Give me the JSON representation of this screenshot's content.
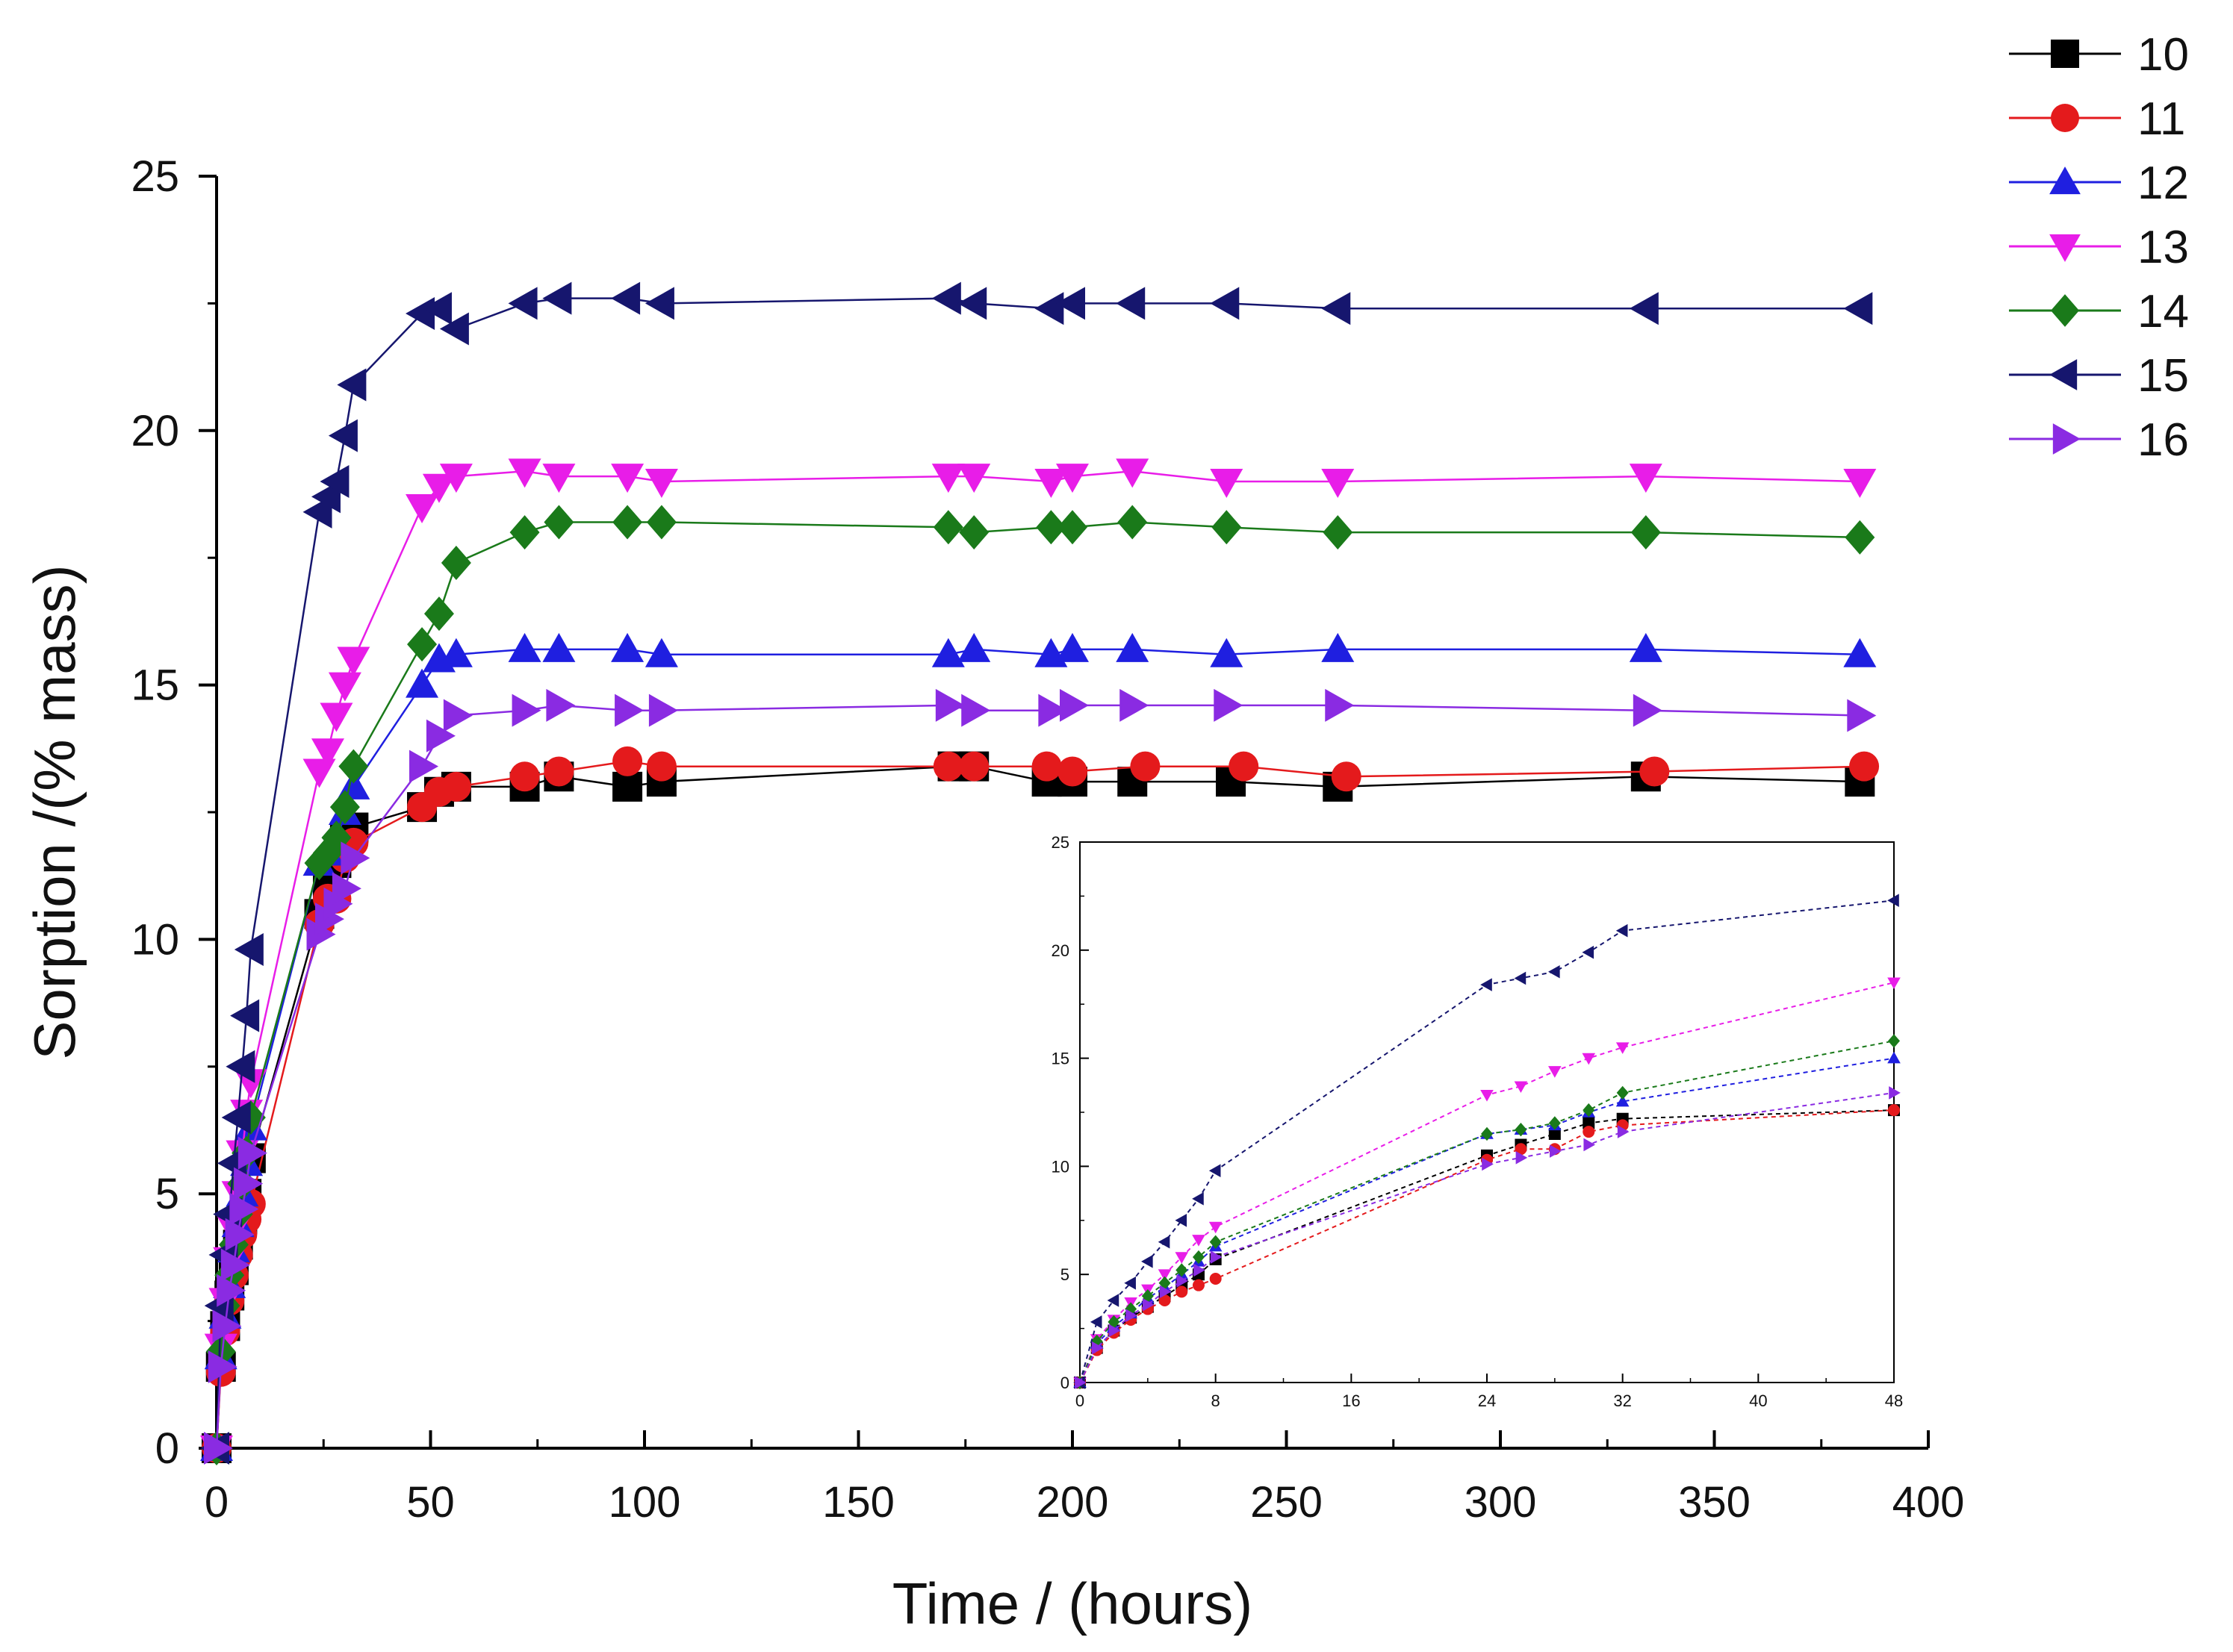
{
  "chart_data": {
    "type": "line",
    "title": "",
    "xlabel": "Time / (hours)",
    "ylabel": "Sorption /(% mass)",
    "xlim": [
      0,
      400
    ],
    "ylim": [
      0,
      25
    ],
    "xticks": [
      0,
      50,
      100,
      150,
      200,
      250,
      300,
      350,
      400
    ],
    "yticks": [
      0,
      5,
      10,
      15,
      20,
      25
    ],
    "x_tick_labels": [
      "0",
      "50",
      "100",
      "150",
      "200",
      "250",
      "300",
      "350",
      "400"
    ],
    "y_tick_labels": [
      "0",
      "5",
      "10",
      "15",
      "20",
      "25"
    ],
    "grid": false,
    "legend": "top-right",
    "series": [
      {
        "name": "10",
        "color": "#000000",
        "marker": "square",
        "x": [
          0,
          1,
          2,
          3,
          4,
          5,
          6,
          7,
          8,
          24,
          26,
          28,
          30,
          32,
          48,
          52,
          56,
          72,
          80,
          96,
          104,
          172,
          177,
          194,
          200,
          214,
          237,
          262,
          334,
          384
        ],
        "y": [
          0,
          1.6,
          2.4,
          3.0,
          3.5,
          4.0,
          4.5,
          5.0,
          5.7,
          10.5,
          11.0,
          11.5,
          12.0,
          12.2,
          12.6,
          12.9,
          13.0,
          13.0,
          13.2,
          13.0,
          13.1,
          13.4,
          13.4,
          13.1,
          13.1,
          13.1,
          13.1,
          13.0,
          13.2,
          13.1
        ]
      },
      {
        "name": "11",
        "color": "#e41a1c",
        "marker": "circle",
        "x": [
          0,
          1,
          2,
          3,
          4,
          5,
          6,
          7,
          8,
          24,
          26,
          28,
          30,
          32,
          48,
          52,
          56,
          72,
          80,
          96,
          104,
          171,
          177,
          194,
          200,
          217,
          240,
          264,
          336,
          385
        ],
        "y": [
          0,
          1.5,
          2.3,
          2.9,
          3.4,
          3.8,
          4.2,
          4.5,
          4.8,
          10.3,
          10.8,
          10.8,
          11.6,
          11.9,
          12.6,
          12.9,
          13.0,
          13.2,
          13.3,
          13.5,
          13.4,
          13.4,
          13.4,
          13.4,
          13.3,
          13.4,
          13.4,
          13.2,
          13.3,
          13.4
        ]
      },
      {
        "name": "12",
        "color": "#1f1fe0",
        "marker": "triangle-up",
        "x": [
          0,
          1,
          2,
          3,
          4,
          5,
          6,
          7,
          8,
          24,
          26,
          28,
          30,
          32,
          48,
          52,
          56,
          72,
          80,
          96,
          104,
          171,
          177,
          195,
          200,
          214,
          236,
          262,
          334,
          384
        ],
        "y": [
          0,
          1.8,
          2.6,
          3.2,
          3.9,
          4.4,
          5.0,
          5.6,
          6.3,
          11.5,
          11.7,
          11.9,
          12.5,
          13.0,
          15.0,
          15.5,
          15.6,
          15.7,
          15.7,
          15.7,
          15.6,
          15.6,
          15.7,
          15.6,
          15.7,
          15.7,
          15.6,
          15.7,
          15.7,
          15.6
        ]
      },
      {
        "name": "13",
        "color": "#e81de8",
        "marker": "triangle-down",
        "x": [
          0,
          1,
          2,
          3,
          4,
          5,
          6,
          7,
          8,
          24,
          26,
          28,
          30,
          32,
          48,
          52,
          56,
          72,
          80,
          96,
          104,
          171,
          177,
          195,
          200,
          214,
          236,
          262,
          334,
          384
        ],
        "y": [
          0,
          2.0,
          2.9,
          3.7,
          4.3,
          5.0,
          5.8,
          6.6,
          7.2,
          13.3,
          13.7,
          14.4,
          15.0,
          15.5,
          18.5,
          18.9,
          19.1,
          19.2,
          19.1,
          19.1,
          19.0,
          19.1,
          19.1,
          19.0,
          19.1,
          19.2,
          19.0,
          19.0,
          19.1,
          19.0
        ]
      },
      {
        "name": "14",
        "color": "#1a7a1a",
        "marker": "diamond",
        "x": [
          0,
          1,
          2,
          3,
          4,
          5,
          6,
          7,
          8,
          24,
          26,
          28,
          30,
          32,
          48,
          52,
          56,
          72,
          80,
          96,
          104,
          171,
          177,
          195,
          200,
          214,
          236,
          262,
          334,
          384
        ],
        "y": [
          0,
          1.9,
          2.8,
          3.4,
          4.0,
          4.6,
          5.2,
          5.8,
          6.5,
          11.5,
          11.7,
          12.0,
          12.6,
          13.4,
          15.8,
          16.4,
          17.4,
          18.0,
          18.2,
          18.2,
          18.2,
          18.1,
          18.0,
          18.1,
          18.1,
          18.2,
          18.1,
          18.0,
          18.0,
          17.9
        ]
      },
      {
        "name": "15",
        "color": "#16166e",
        "marker": "triangle-left",
        "x": [
          0,
          1,
          2,
          3,
          4,
          5,
          6,
          7,
          8,
          24,
          26,
          28,
          30,
          32,
          48,
          52,
          56,
          72,
          80,
          96,
          104,
          171,
          177,
          195,
          200,
          214,
          236,
          262,
          334,
          384
        ],
        "y": [
          0,
          2.8,
          3.8,
          4.6,
          5.6,
          6.5,
          7.5,
          8.5,
          9.8,
          18.4,
          18.7,
          19.0,
          19.9,
          20.9,
          22.3,
          22.4,
          22.0,
          22.5,
          22.6,
          22.6,
          22.5,
          22.6,
          22.5,
          22.4,
          22.5,
          22.5,
          22.5,
          22.4,
          22.4,
          22.4
        ]
      },
      {
        "name": "16",
        "color": "#8a2be2",
        "marker": "triangle-right",
        "x": [
          0,
          1,
          2,
          3,
          4,
          5,
          6,
          7,
          8,
          24,
          26,
          28,
          30,
          32,
          48,
          52,
          56,
          72,
          80,
          96,
          104,
          171,
          177,
          195,
          200,
          214,
          236,
          262,
          334,
          384
        ],
        "y": [
          0,
          1.6,
          2.4,
          3.1,
          3.6,
          4.2,
          4.7,
          5.2,
          5.8,
          10.1,
          10.4,
          10.7,
          11.0,
          11.6,
          13.4,
          14.0,
          14.4,
          14.5,
          14.6,
          14.5,
          14.5,
          14.6,
          14.5,
          14.5,
          14.6,
          14.6,
          14.6,
          14.6,
          14.5,
          14.4
        ]
      }
    ],
    "inset": {
      "type": "line",
      "xlim": [
        0,
        48
      ],
      "ylim": [
        0,
        25
      ],
      "xticks": [
        0,
        8,
        16,
        24,
        32,
        40,
        48
      ],
      "yticks": [
        0,
        5,
        10,
        15,
        20,
        25
      ],
      "x_tick_labels": [
        "0",
        "8",
        "16",
        "24",
        "32",
        "40",
        "48"
      ],
      "y_tick_labels": [
        "0",
        "5",
        "10",
        "15",
        "20",
        "25"
      ],
      "max_x": 48
    }
  }
}
